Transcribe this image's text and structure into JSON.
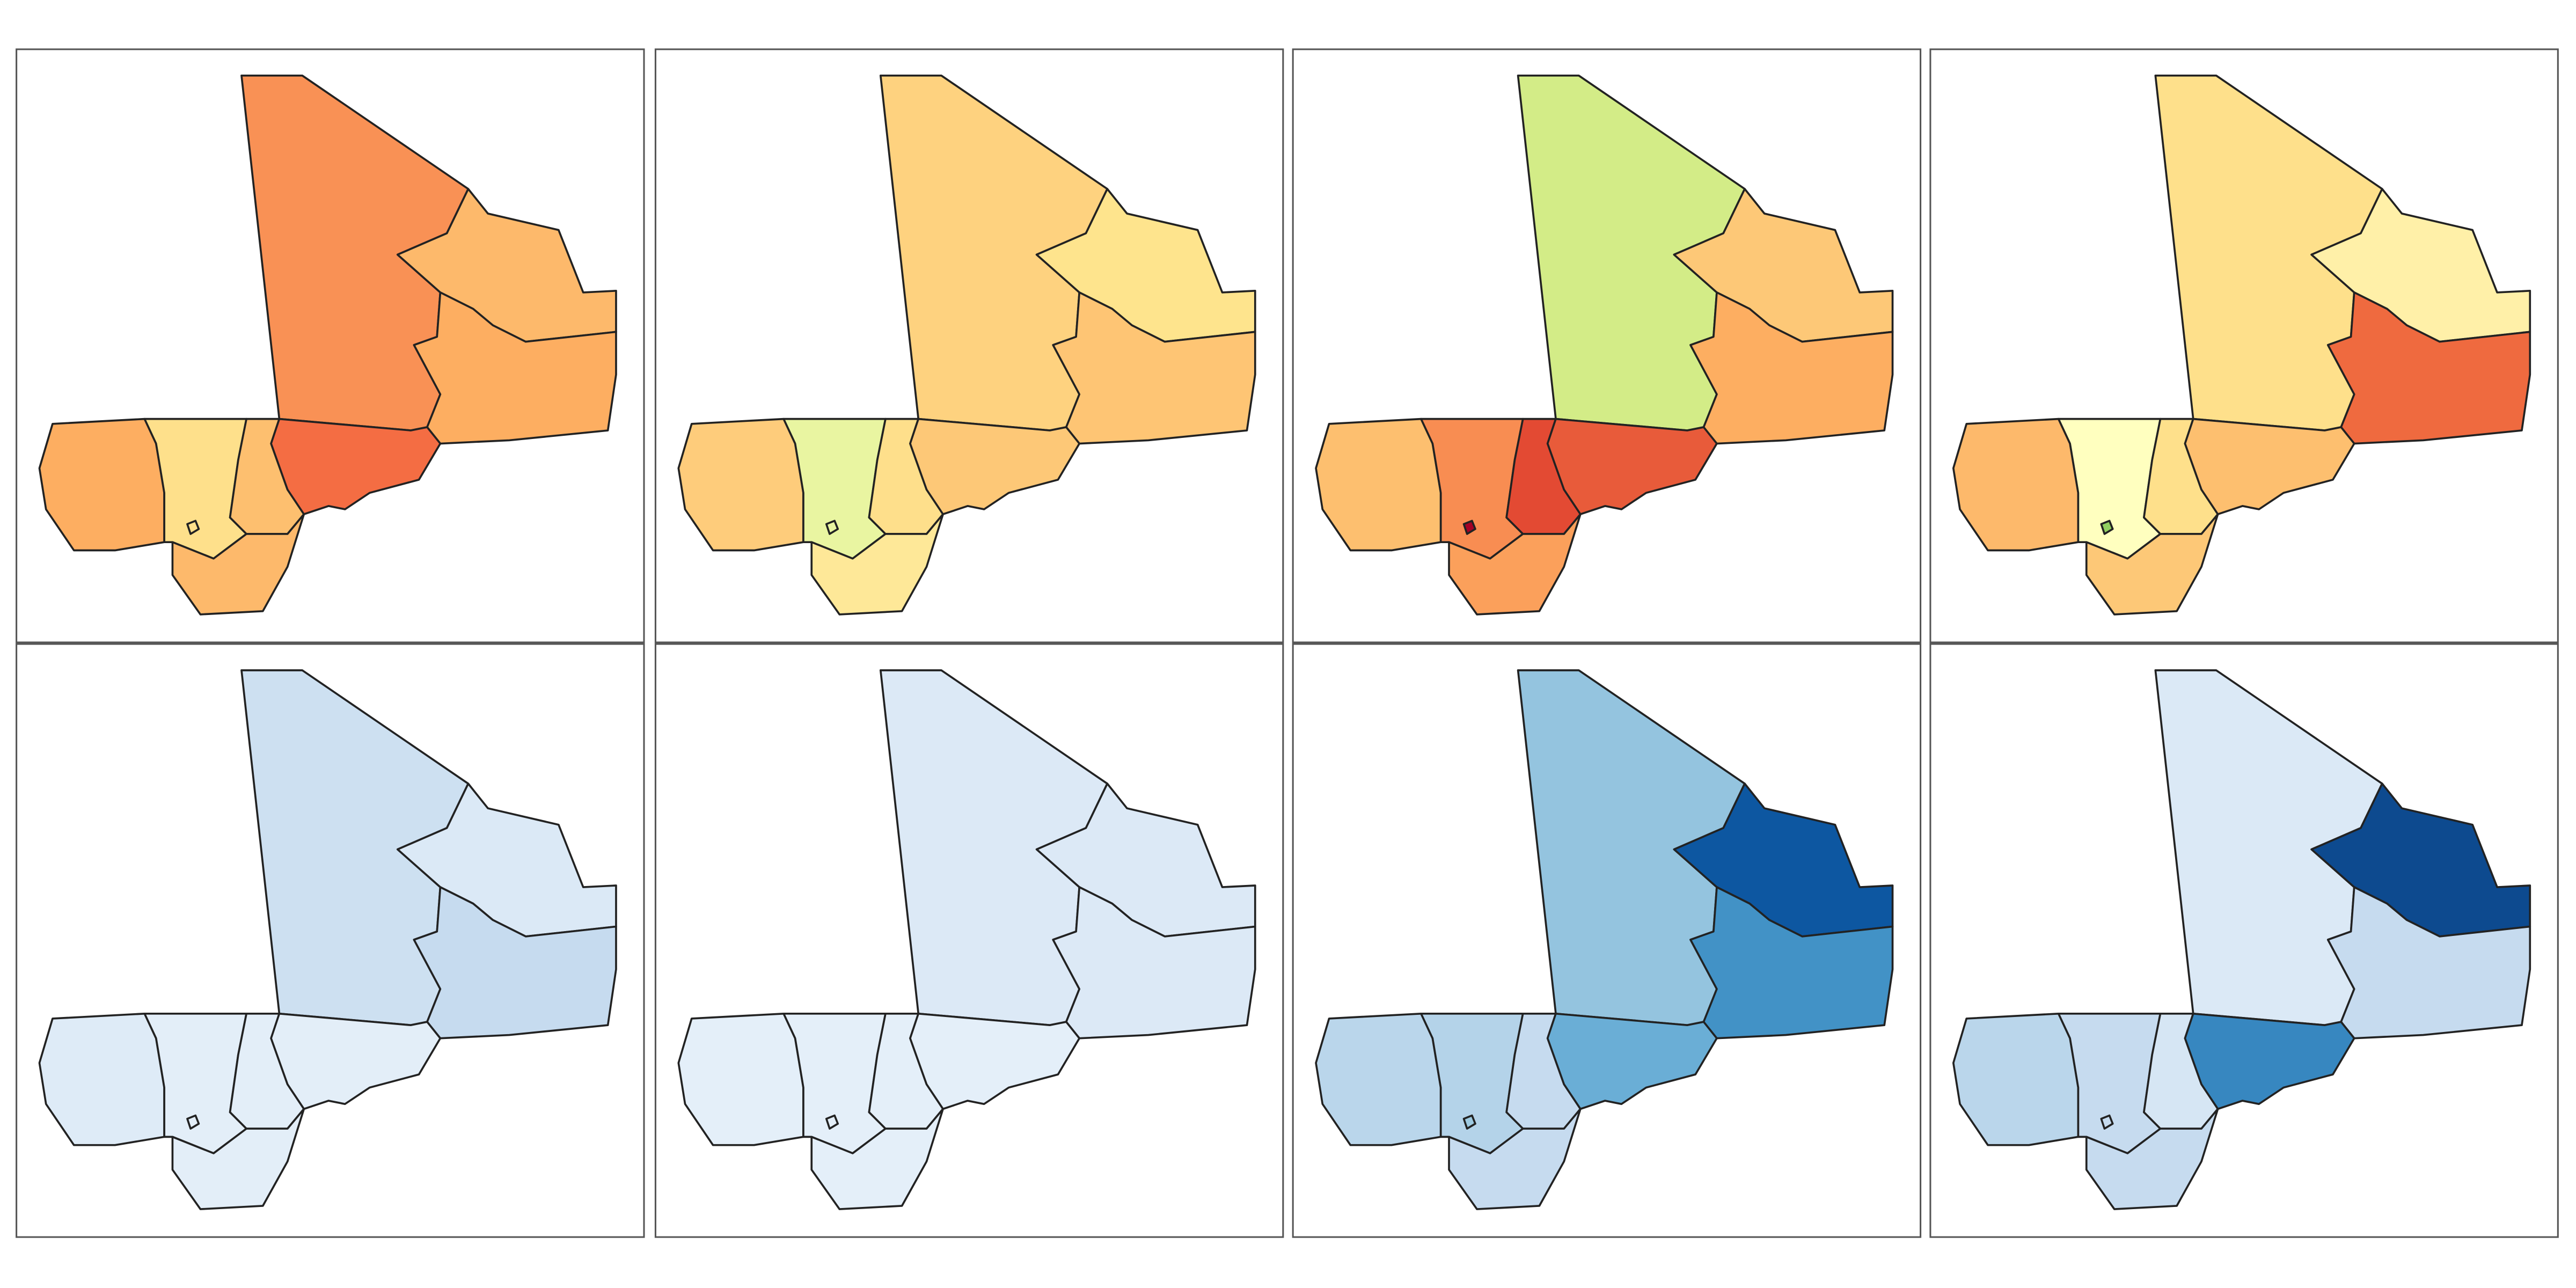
{
  "panels": [
    {
      "fills": [
        "#f99155",
        "#fdb96b",
        "#fdae61",
        "#fdae61",
        "#fee08b",
        "#fdbf6f",
        "#f46d43",
        "#fdb96b",
        "#fee08b"
      ]
    },
    {
      "fills": [
        "#fed27f",
        "#fee48d",
        "#fec574",
        "#fecc7b",
        "#e9f5a1",
        "#fedf8b",
        "#fdc877",
        "#fee898",
        "#e9f5a1"
      ]
    },
    {
      "fills": [
        "#d3ec87",
        "#fdc877",
        "#fdae61",
        "#fdbf6f",
        "#f88d52",
        "#e34a33",
        "#e85b3a",
        "#fba05b",
        "#a50026"
      ]
    },
    {
      "fills": [
        "#fee08b",
        "#fff0a8",
        "#ef6a3f",
        "#fdb96b",
        "#ffffbf",
        "#fee08b",
        "#fdbf6f",
        "#fdc877",
        "#91cf60"
      ]
    },
    {
      "fills": [
        "#cde0f1",
        "#dbe9f6",
        "#c6dbef",
        "#deebf7",
        "#e3eef8",
        "#e3eef8",
        "#e3eef8",
        "#e3eef8",
        "#e3eef8"
      ]
    },
    {
      "fills": [
        "#dce9f6",
        "#dce9f6",
        "#dce9f6",
        "#e4eff9",
        "#e4eff9",
        "#e4eff9",
        "#e4eff9",
        "#e4eff9",
        "#e4eff9"
      ]
    },
    {
      "fills": [
        "#94c4df",
        "#0d57a1",
        "#4292c6",
        "#bad6eb",
        "#b4d3e9",
        "#c6dbef",
        "#6aaed6",
        "#c6dbef",
        "#9ecae1"
      ]
    },
    {
      "fills": [
        "#dbe9f6",
        "#0d4a8f",
        "#c6dbef",
        "#bad6eb",
        "#c6dbef",
        "#d6e6f4",
        "#3787c0",
        "#c6dbef",
        "#c6dbef"
      ]
    }
  ]
}
